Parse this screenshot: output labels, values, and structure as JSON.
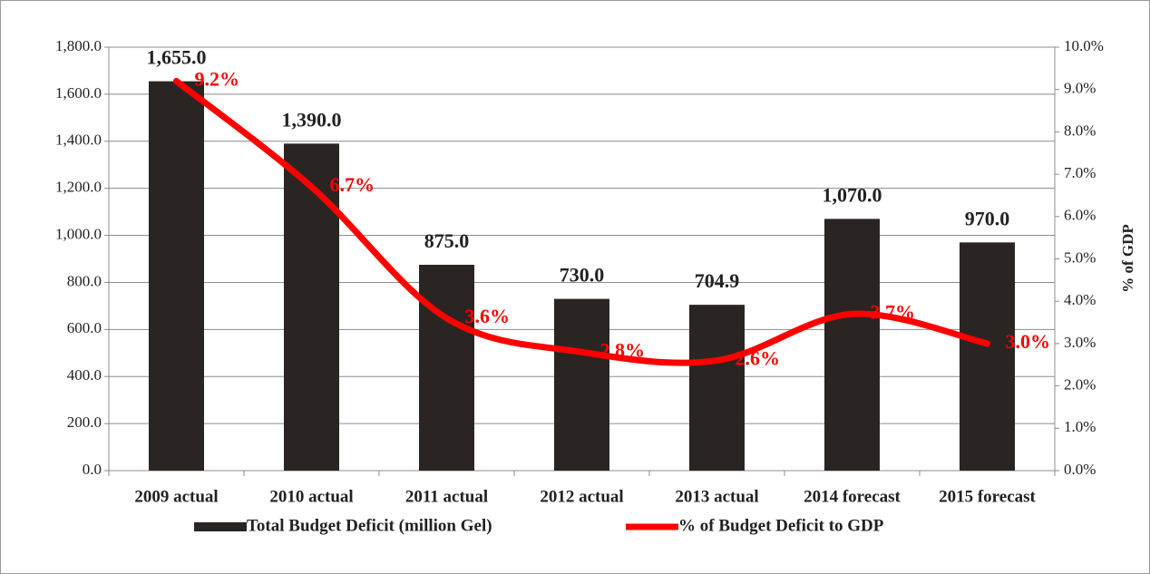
{
  "chart_data": {
    "type": "bar-line",
    "categories": [
      "2009 actual",
      "2010 actual",
      "2011 actual",
      "2012 actual",
      "2013 actual",
      "2014 forecast",
      "2015 forecast"
    ],
    "series": [
      {
        "name": "Total Budget Deficit (million Gel)",
        "type": "bar",
        "color": "#2a2522",
        "values": [
          1655.0,
          1390.0,
          875.0,
          730.0,
          704.9,
          1070.0,
          970.0
        ],
        "value_labels": [
          "1,655.0",
          "1,390.0",
          "875.0",
          "730.0",
          "704.9",
          "1,070.0",
          "970.0"
        ]
      },
      {
        "name": "% of Budget Deficit to GDP",
        "type": "line",
        "axis": "y2",
        "color": "#ff0000",
        "values": [
          9.2,
          6.7,
          3.6,
          2.8,
          2.6,
          3.7,
          3.0
        ],
        "value_labels": [
          "9.2%",
          "6.7%",
          "3.6%",
          "2.8%",
          "2.6%",
          "3.7%",
          "3.0%"
        ]
      }
    ],
    "ylim": [
      0,
      1800
    ],
    "yticks": [
      {
        "value": 0,
        "label": "0.0"
      },
      {
        "value": 200,
        "label": "200.0"
      },
      {
        "value": 400,
        "label": "400.0"
      },
      {
        "value": 600,
        "label": "600.0"
      },
      {
        "value": 800,
        "label": "800.0"
      },
      {
        "value": 1000,
        "label": "1,000.0"
      },
      {
        "value": 1200,
        "label": "1,200.0"
      },
      {
        "value": 1400,
        "label": "1,400.0"
      },
      {
        "value": 1600,
        "label": "1,600.0"
      },
      {
        "value": 1800,
        "label": "1,800.0"
      }
    ],
    "y2lim": [
      0,
      10
    ],
    "y2ticks": [
      {
        "value": 0,
        "label": "0.0%"
      },
      {
        "value": 1,
        "label": "1.0%"
      },
      {
        "value": 2,
        "label": "2.0%"
      },
      {
        "value": 3,
        "label": "3.0%"
      },
      {
        "value": 4,
        "label": "4.0%"
      },
      {
        "value": 5,
        "label": "5.0%"
      },
      {
        "value": 6,
        "label": "6.0%"
      },
      {
        "value": 7,
        "label": "7.0%"
      },
      {
        "value": 8,
        "label": "8.0%"
      },
      {
        "value": 9,
        "label": "9.0%"
      },
      {
        "value": 10,
        "label": "10.0%"
      }
    ],
    "y2label": "% of GDP",
    "grid": true,
    "legend": "bottom"
  }
}
